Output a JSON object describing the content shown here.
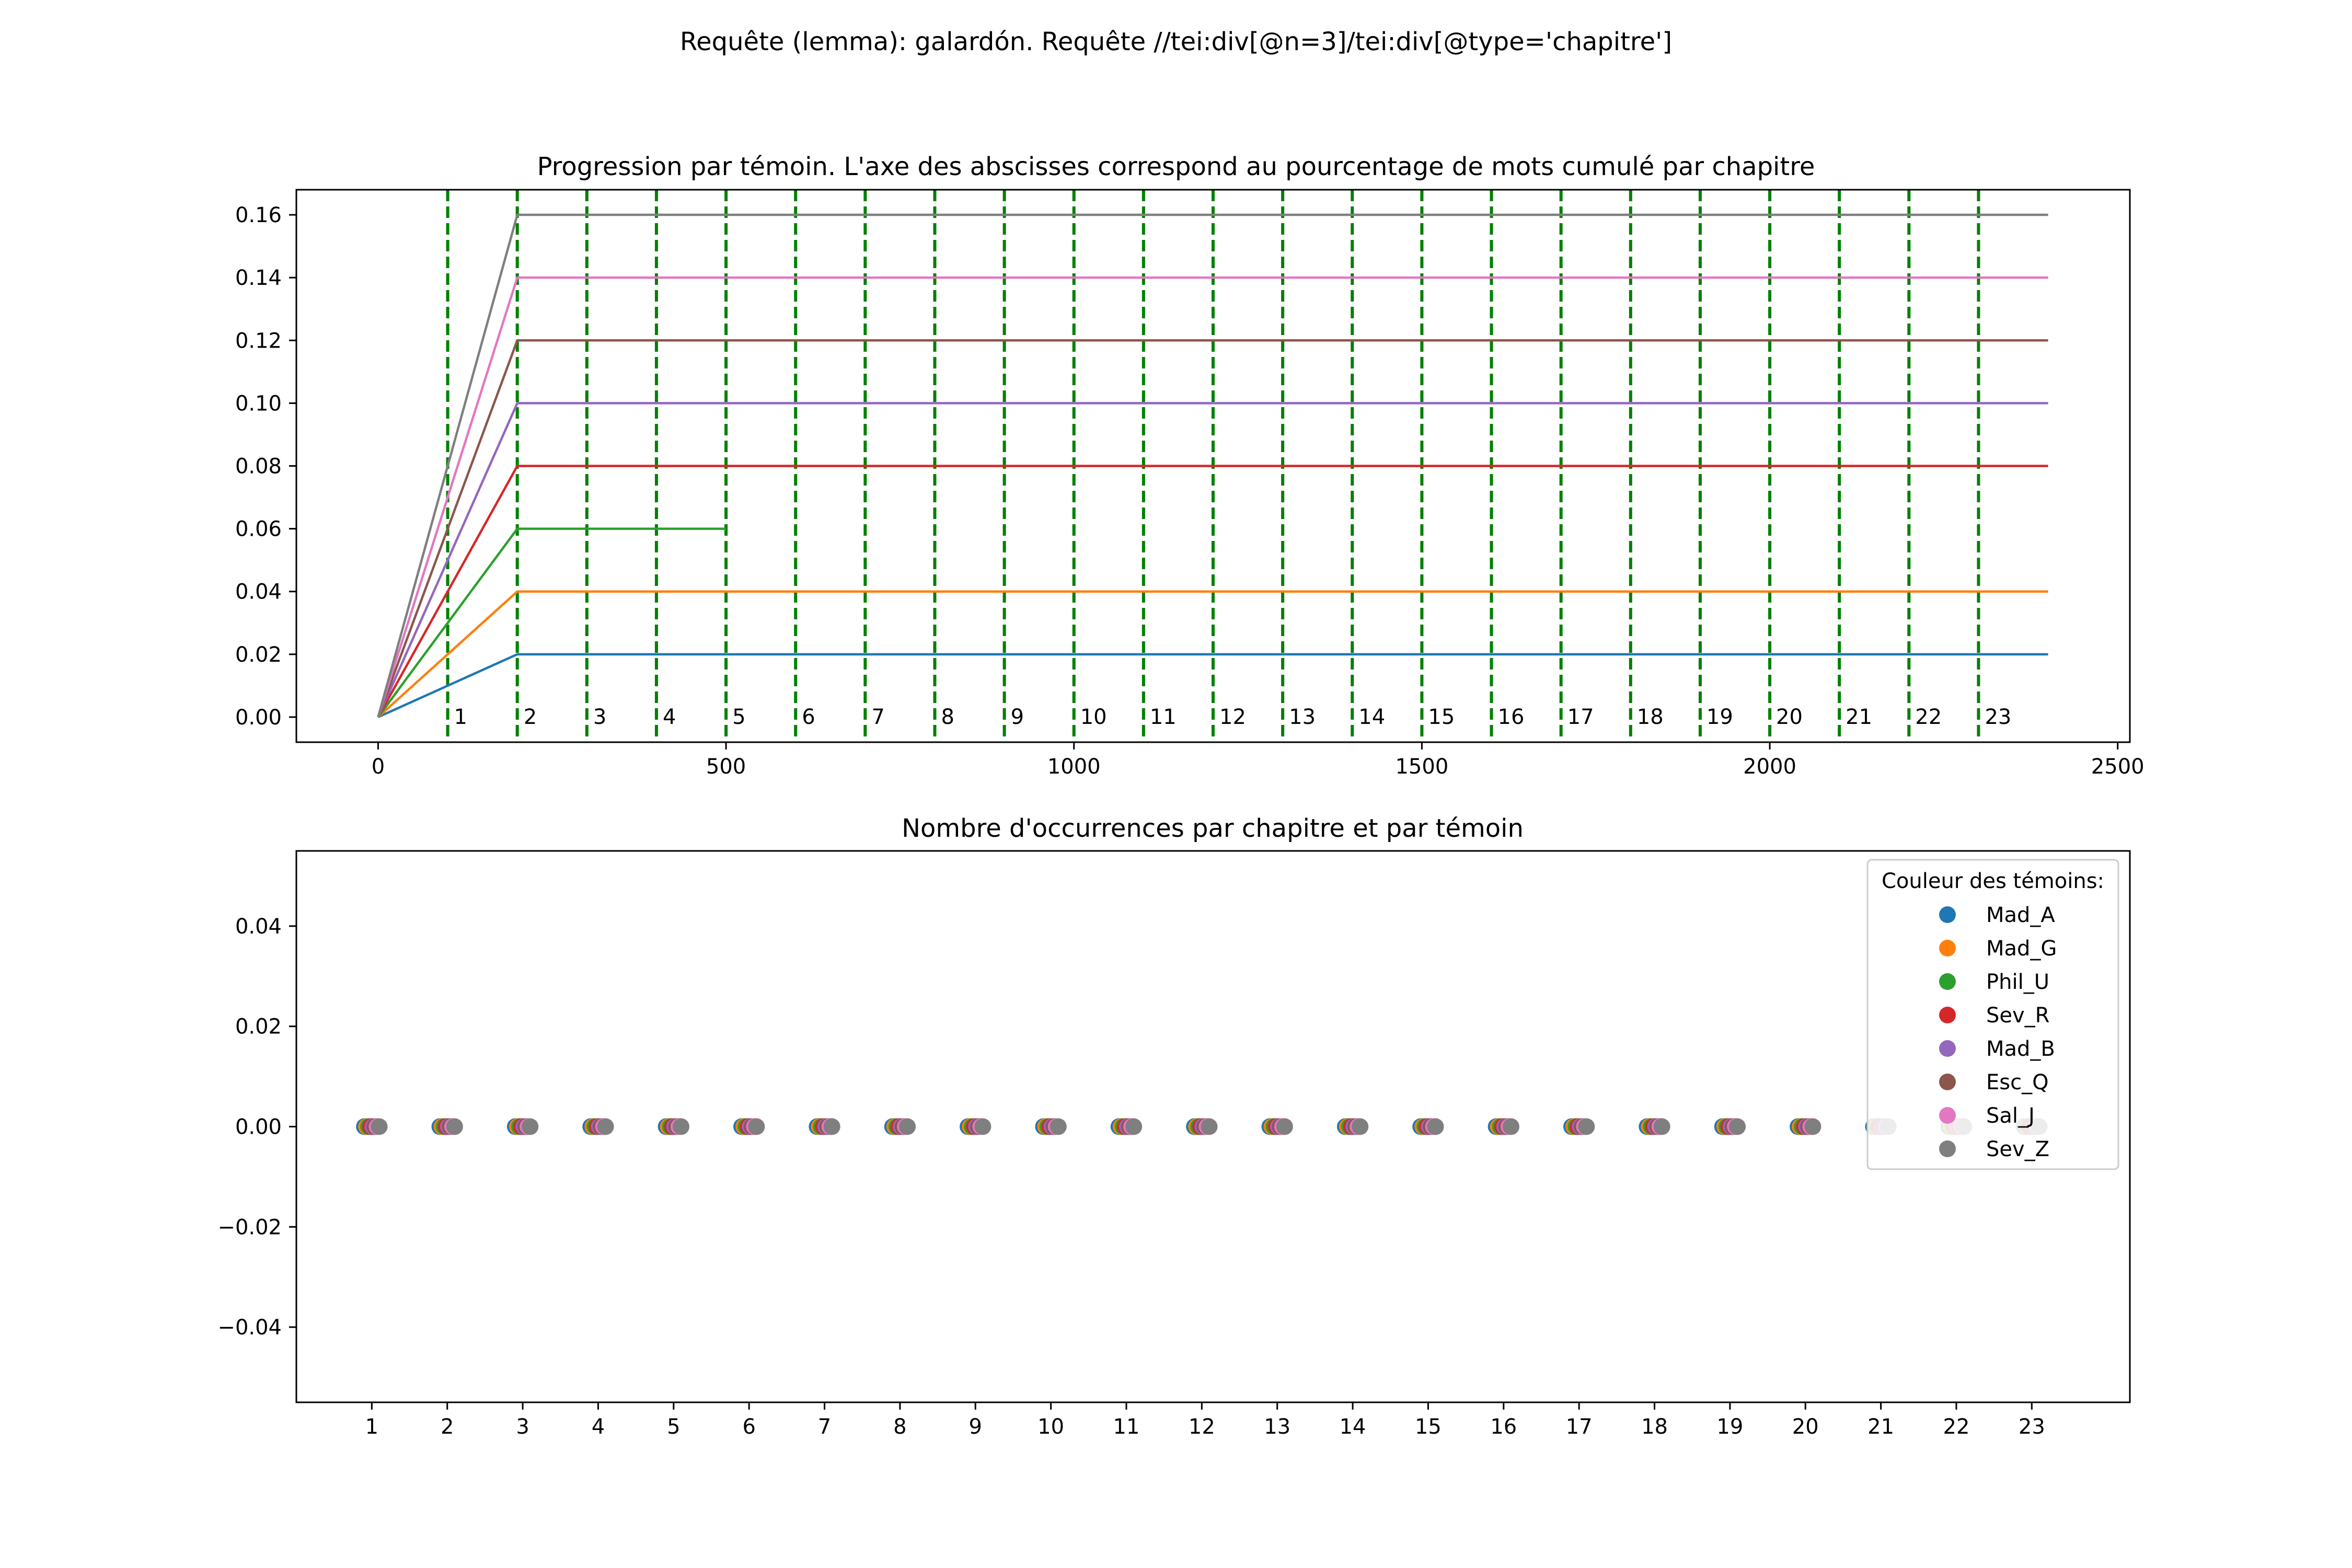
{
  "suptitle": "Requête (lemma): galardón. Requête //tei:div[@n=3]/tei:div[@type='chapitre']",
  "chart_data": [
    {
      "type": "line",
      "title": "Progression par témoin. L'axe des abscisses correspond au pourcentage de mots cumulé par chapitre",
      "xlim": [
        -117.5,
        2517.5
      ],
      "ylim": [
        -0.008,
        0.168
      ],
      "xticks": [
        0,
        500,
        1000,
        1500,
        2000,
        2500
      ],
      "xtick_labels": [
        "0",
        "500",
        "1000",
        "1500",
        "2000",
        "2500"
      ],
      "yticks": [
        0.0,
        0.02,
        0.04,
        0.06,
        0.08,
        0.1,
        0.12,
        0.14,
        0.16
      ],
      "ytick_labels": [
        "0.00",
        "0.02",
        "0.04",
        "0.06",
        "0.08",
        "0.10",
        "0.12",
        "0.14",
        "0.16"
      ],
      "chapter_markers": {
        "x": [
          100,
          200,
          300,
          400,
          500,
          600,
          700,
          800,
          900,
          1000,
          1100,
          1200,
          1300,
          1400,
          1500,
          1600,
          1700,
          1800,
          1900,
          2000,
          2100,
          2200,
          2300
        ],
        "labels": [
          "1",
          "2",
          "3",
          "4",
          "5",
          "6",
          "7",
          "8",
          "9",
          "10",
          "11",
          "12",
          "13",
          "14",
          "15",
          "16",
          "17",
          "18",
          "19",
          "20",
          "21",
          "22",
          "23"
        ],
        "color": "#008000",
        "style": "dashed"
      },
      "series": [
        {
          "name": "Mad_A",
          "color": "#1f77b4",
          "x": [
            0,
            200,
            2400
          ],
          "y": [
            0,
            0.02,
            0.02
          ]
        },
        {
          "name": "Mad_G",
          "color": "#ff7f0e",
          "x": [
            0,
            200,
            2400
          ],
          "y": [
            0,
            0.04,
            0.04
          ]
        },
        {
          "name": "Phil_U",
          "color": "#2ca02c",
          "x": [
            0,
            200,
            500
          ],
          "y": [
            0,
            0.06,
            0.06
          ]
        },
        {
          "name": "Sev_R",
          "color": "#d62728",
          "x": [
            0,
            200,
            2400
          ],
          "y": [
            0,
            0.08,
            0.08
          ]
        },
        {
          "name": "Mad_B",
          "color": "#9467bd",
          "x": [
            0,
            200,
            2400
          ],
          "y": [
            0,
            0.1,
            0.1
          ]
        },
        {
          "name": "Esc_Q",
          "color": "#8c564b",
          "x": [
            0,
            200,
            2400
          ],
          "y": [
            0,
            0.12,
            0.12
          ]
        },
        {
          "name": "Sal_J",
          "color": "#e377c2",
          "x": [
            0,
            200,
            2400
          ],
          "y": [
            0,
            0.14,
            0.14
          ]
        },
        {
          "name": "Sev_Z",
          "color": "#7f7f7f",
          "x": [
            0,
            200,
            2400
          ],
          "y": [
            0,
            0.16,
            0.16
          ]
        }
      ]
    },
    {
      "type": "scatter",
      "title": "Nombre d'occurrences par chapitre et par témoin",
      "xlim": [
        0,
        24.3
      ],
      "ylim": [
        -0.055,
        0.055
      ],
      "categories": [
        "1",
        "2",
        "3",
        "4",
        "5",
        "6",
        "7",
        "8",
        "9",
        "10",
        "11",
        "12",
        "13",
        "14",
        "15",
        "16",
        "17",
        "18",
        "19",
        "20",
        "21",
        "22",
        "23"
      ],
      "yticks": [
        -0.04,
        -0.02,
        0.0,
        0.02,
        0.04
      ],
      "ytick_labels": [
        "−0.04",
        "−0.02",
        "0.00",
        "0.02",
        "0.04"
      ],
      "legend": {
        "title": "Couleur des témoins:",
        "placement": "top-right"
      },
      "series": [
        {
          "name": "Mad_A",
          "color": "#1f77b4",
          "values": [
            0,
            0,
            0,
            0,
            0,
            0,
            0,
            0,
            0,
            0,
            0,
            0,
            0,
            0,
            0,
            0,
            0,
            0,
            0,
            0,
            0,
            0,
            0
          ]
        },
        {
          "name": "Mad_G",
          "color": "#ff7f0e",
          "values": [
            0,
            0,
            0,
            0,
            0,
            0,
            0,
            0,
            0,
            0,
            0,
            0,
            0,
            0,
            0,
            0,
            0,
            0,
            0,
            0,
            0,
            0,
            0
          ]
        },
        {
          "name": "Phil_U",
          "color": "#2ca02c",
          "values": [
            0,
            0,
            0,
            0,
            0,
            0,
            0,
            0,
            0,
            0,
            0,
            0,
            0,
            0,
            0,
            0,
            0,
            0,
            0,
            0,
            0,
            0,
            0
          ]
        },
        {
          "name": "Sev_R",
          "color": "#d62728",
          "values": [
            0,
            0,
            0,
            0,
            0,
            0,
            0,
            0,
            0,
            0,
            0,
            0,
            0,
            0,
            0,
            0,
            0,
            0,
            0,
            0,
            0,
            0,
            0
          ]
        },
        {
          "name": "Mad_B",
          "color": "#9467bd",
          "values": [
            0,
            0,
            0,
            0,
            0,
            0,
            0,
            0,
            0,
            0,
            0,
            0,
            0,
            0,
            0,
            0,
            0,
            0,
            0,
            0,
            0,
            0,
            0
          ]
        },
        {
          "name": "Esc_Q",
          "color": "#8c564b",
          "values": [
            0,
            0,
            0,
            0,
            0,
            0,
            0,
            0,
            0,
            0,
            0,
            0,
            0,
            0,
            0,
            0,
            0,
            0,
            0,
            0,
            0,
            0,
            0
          ]
        },
        {
          "name": "Sal_J",
          "color": "#e377c2",
          "values": [
            0,
            0,
            0,
            0,
            0,
            0,
            0,
            0,
            0,
            0,
            0,
            0,
            0,
            0,
            0,
            0,
            0,
            0,
            0,
            0,
            0,
            0,
            0
          ]
        },
        {
          "name": "Sev_Z",
          "color": "#7f7f7f",
          "values": [
            0,
            0,
            0,
            0,
            0,
            0,
            0,
            0,
            0,
            0,
            0,
            0,
            0,
            0,
            0,
            0,
            0,
            0,
            0,
            0,
            0,
            0,
            0
          ]
        }
      ]
    }
  ]
}
